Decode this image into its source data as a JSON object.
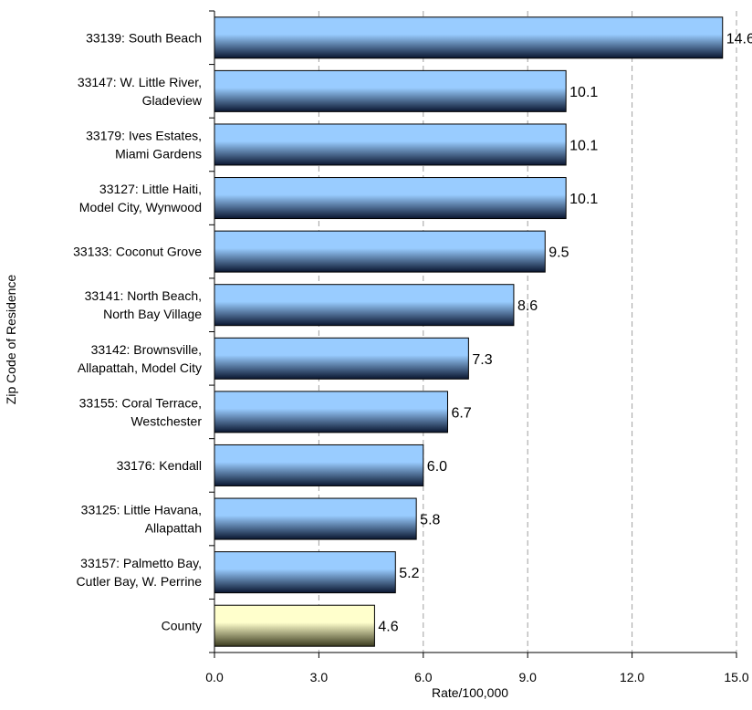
{
  "chart_data": {
    "type": "bar",
    "orientation": "horizontal",
    "categories": [
      [
        "33139:  South Beach"
      ],
      [
        "33147:  W. Little River,",
        "Gladeview"
      ],
      [
        "33179:  Ives Estates,",
        "Miami Gardens"
      ],
      [
        "33127:  Little Haiti,",
        "Model City, Wynwood"
      ],
      [
        "33133:  Coconut Grove"
      ],
      [
        "33141:  North Beach,",
        "North Bay Village"
      ],
      [
        "33142:  Brownsville,",
        "Allapattah, Model City"
      ],
      [
        "33155:  Coral Terrace,",
        "Westchester"
      ],
      [
        "33176:  Kendall"
      ],
      [
        "33125:  Little Havana,",
        "Allapattah"
      ],
      [
        "33157:  Palmetto Bay,",
        "Cutler Bay, W. Perrine"
      ],
      [
        "County"
      ]
    ],
    "values": [
      14.6,
      10.1,
      10.1,
      10.1,
      9.5,
      8.6,
      7.3,
      6.7,
      6.0,
      5.8,
      5.2,
      4.6
    ],
    "data_labels": [
      "14.6",
      "10.1",
      "10.1",
      "10.1",
      "9.5",
      "8.6",
      "7.3",
      "6.7",
      "6.0",
      "5.8",
      "5.2",
      "4.6"
    ],
    "highlight_categories": [
      "County"
    ],
    "xlabel": "Rate/100,000",
    "ylabel": "Zip Code of Residence",
    "xlim": [
      0,
      15
    ],
    "xticks": [
      "0.0",
      "3.0",
      "6.0",
      "9.0",
      "12.0",
      "15.0"
    ],
    "grid": "vertical dashed",
    "colors": {
      "bar": "#99ccff",
      "bar_dark": "#0a1630",
      "highlight": "#ffffcc",
      "highlight_dark": "#3a3a1e",
      "grid": "#a0a0a0"
    }
  }
}
